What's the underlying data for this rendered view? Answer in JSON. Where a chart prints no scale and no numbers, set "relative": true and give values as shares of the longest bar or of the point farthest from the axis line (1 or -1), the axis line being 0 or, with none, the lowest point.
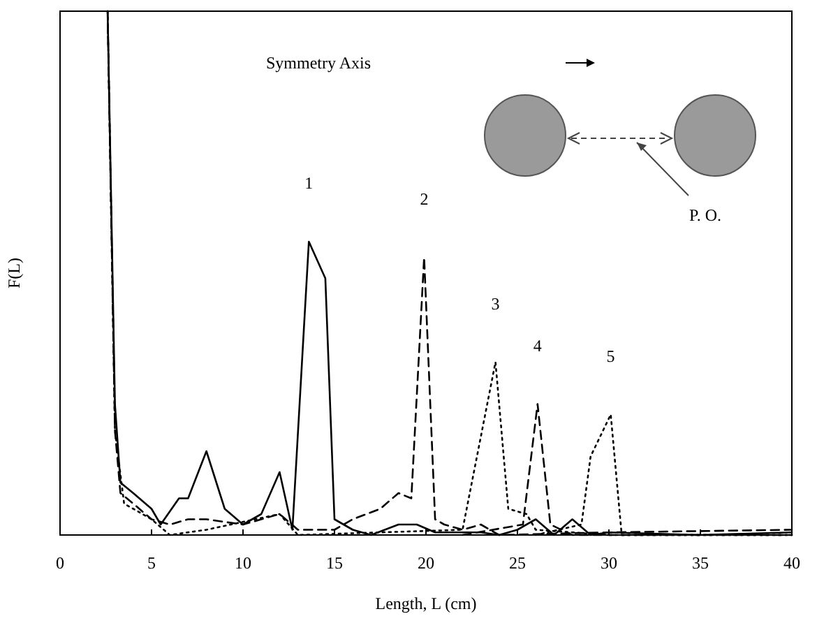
{
  "chart_data": {
    "type": "line",
    "relative": true,
    "xlabel": "Length, L (cm)",
    "ylabel": "F(L)",
    "xlim": [
      0,
      40
    ],
    "xticks": [
      0,
      5,
      10,
      15,
      20,
      25,
      30,
      35,
      40
    ],
    "grid": false,
    "marker": "none",
    "series": [
      {
        "color": "#000000",
        "line_style": "solid",
        "x": [
          2.6,
          3,
          3.3,
          4,
          5,
          5.5,
          6.5,
          7,
          8,
          9,
          10,
          11,
          12,
          12.7,
          13.6,
          14.5,
          15,
          16,
          17,
          18.5,
          19.5,
          20.5,
          23,
          24,
          25,
          26,
          27,
          28,
          29,
          30,
          35,
          40
        ],
        "values": [
          1,
          0.25,
          0.1,
          0.08,
          0.05,
          0.02,
          0.07,
          0.07,
          0.16,
          0.05,
          0.02,
          0.04,
          0.12,
          0.01,
          0.56,
          0.49,
          0.03,
          0.01,
          0,
          0.02,
          0.02,
          0.005,
          0.005,
          0,
          0.01,
          0.03,
          0,
          0.03,
          0,
          0.005,
          0,
          0.005
        ]
      },
      {
        "color": "#000000",
        "line_style": "dashed",
        "x": [
          2.6,
          3,
          3.3,
          4,
          5,
          6,
          7,
          8,
          10,
          11,
          12,
          13,
          15,
          16,
          17.5,
          18.5,
          19.2,
          19.9,
          20.5,
          21,
          22,
          23,
          24,
          30,
          40
        ],
        "values": [
          1,
          0.2,
          0.08,
          0.06,
          0.03,
          0.02,
          0.03,
          0.03,
          0.02,
          0.03,
          0.04,
          0.01,
          0.01,
          0.03,
          0.05,
          0.08,
          0.07,
          0.53,
          0.03,
          0.02,
          0.01,
          0.02,
          0,
          0.005,
          0.01
        ]
      },
      {
        "color": "#000000",
        "line_style": "dotted",
        "x": [
          2.6,
          3,
          3.5,
          5,
          6,
          8,
          12,
          13,
          22,
          23.8,
          24.5,
          25.5,
          26,
          30,
          40
        ],
        "values": [
          1,
          0.2,
          0.06,
          0.03,
          0,
          0.01,
          0.04,
          0,
          0.01,
          0.33,
          0.05,
          0.04,
          0.01,
          0,
          0
        ]
      },
      {
        "color": "#000000",
        "line_style": "dashed",
        "x": [
          22,
          25.3,
          26.1,
          26.8,
          28,
          40
        ],
        "values": [
          0,
          0.02,
          0.25,
          0.02,
          0,
          0
        ]
      },
      {
        "color": "#000000",
        "line_style": "dotted",
        "x": [
          26,
          28.5,
          29,
          30.1,
          30.7,
          40
        ],
        "values": [
          0,
          0.02,
          0.15,
          0.23,
          0,
          0
        ]
      }
    ],
    "annotations": [
      "1",
      "2",
      "3",
      "4",
      "5",
      "Symmetry Axis",
      "P. O."
    ]
  }
}
